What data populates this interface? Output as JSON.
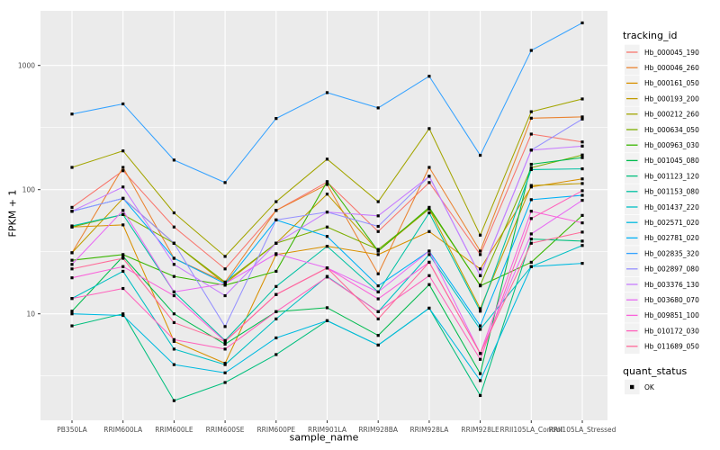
{
  "figure": {
    "background": "#FFFFFF",
    "panel_background": "#EBEBEB",
    "grid_color": "#FFFFFF",
    "axis_text_color": "#4D4D4D",
    "tick_mark_color": "#333333",
    "marker_color": "#000000",
    "legend_key_background": "#F2F2F2"
  },
  "legend": {
    "tracking_title": "tracking_id",
    "quant_title": "quant_status",
    "quant_entries": [
      {
        "label": "OK",
        "symbol": "black-square"
      }
    ]
  },
  "chart_data": {
    "type": "line",
    "title": "",
    "xlabel": "sample_name",
    "ylabel": "FPKM + 1",
    "y_scale": "log10",
    "ylim": [
      1.45,
      2850
    ],
    "y_ticks": [
      10,
      100,
      1000
    ],
    "y_tick_labels": [
      "10",
      "100",
      "1000"
    ],
    "y_minor_ticks": [
      3.162,
      31.62,
      316.23
    ],
    "grid": "white major+minor gridlines on gray panel",
    "legend_position": "right",
    "point_shape": "small filled black square",
    "categories": [
      "PB350LA",
      "RRIM600LA",
      "RRIM600LE",
      "RRIM600SE",
      "RRIM600PE",
      "RRIM901LA",
      "RRIM928BA",
      "RRIM928LA",
      "RRIM928LE",
      "RRII105LA_Control",
      "RRII105LA_Stressed"
    ],
    "series": [
      {
        "name": "Hb_000045_190",
        "color": "#F8766D",
        "values": [
          72,
          142,
          50,
          23,
          68,
          115,
          46,
          114,
          30,
          280,
          242
        ]
      },
      {
        "name": "Hb_000046_260",
        "color": "#EA8331",
        "values": [
          31,
          151,
          28,
          18,
          68,
          110,
          21,
          151,
          32,
          376,
          385
        ]
      },
      {
        "name": "Hb_000161_050",
        "color": "#D89000",
        "values": [
          50,
          52,
          6,
          4,
          30,
          35,
          30,
          46,
          23,
          105,
          122
        ]
      },
      {
        "name": "Hb_000193_200",
        "color": "#C09B00",
        "values": [
          31,
          85,
          37,
          17.5,
          37,
          92,
          32,
          70,
          11,
          108,
          112
        ]
      },
      {
        "name": "Hb_000212_260",
        "color": "#A3A500",
        "values": [
          151,
          205,
          65,
          29,
          80,
          176,
          80,
          310,
          43,
          424,
          537
        ]
      },
      {
        "name": "Hb_000634_050",
        "color": "#7CAE00",
        "values": [
          50,
          63,
          37,
          18,
          37,
          50,
          33,
          70,
          17,
          150,
          190
        ]
      },
      {
        "name": "Hb_000963_030",
        "color": "#39B600",
        "values": [
          27,
          30,
          20,
          17,
          22,
          116,
          32,
          72,
          16.8,
          26,
          62
        ]
      },
      {
        "name": "Hb_001045_080",
        "color": "#00BB4E",
        "values": [
          10.5,
          29,
          10,
          5.7,
          10.4,
          11.2,
          6.7,
          17.2,
          3.3,
          160,
          181
        ]
      },
      {
        "name": "Hb_001123_120",
        "color": "#00BF7D",
        "values": [
          8,
          10,
          2,
          2.8,
          4.7,
          8.8,
          5.6,
          11.1,
          2.2,
          40,
          38.5
        ]
      },
      {
        "name": "Hb_001153_080",
        "color": "#00C1A3",
        "values": [
          51,
          63,
          15,
          6.1,
          16.6,
          35,
          15,
          65,
          10.5,
          145,
          147
        ]
      },
      {
        "name": "Hb_001437_220",
        "color": "#00BFC4",
        "values": [
          13.3,
          22,
          5.2,
          3.9,
          9.1,
          20,
          10.4,
          30,
          7.5,
          24,
          35.5
        ]
      },
      {
        "name": "Hb_002571_020",
        "color": "#00BAE0",
        "values": [
          10,
          9.7,
          3.9,
          3.35,
          6.4,
          8.8,
          5.6,
          11.1,
          2.9,
          24,
          25.5
        ]
      },
      {
        "name": "Hb_002781_020",
        "color": "#00B0F6",
        "values": [
          67,
          85,
          28,
          17.5,
          57,
          42,
          16.8,
          32,
          8,
          83,
          90
        ]
      },
      {
        "name": "Hb_002835_320",
        "color": "#35A2FF",
        "values": [
          406,
          490,
          173,
          114,
          374,
          604,
          455,
          818,
          189,
          1320,
          2200
        ]
      },
      {
        "name": "Hb_002897_080",
        "color": "#9590FF",
        "values": [
          67,
          85,
          37,
          7.9,
          57,
          66,
          50.6,
          128,
          20.3,
          208,
          370
        ]
      },
      {
        "name": "Hb_003376_130",
        "color": "#C77CFF",
        "values": [
          67,
          105,
          25,
          14,
          37,
          66,
          61.5,
          128,
          20.3,
          208,
          224
        ]
      },
      {
        "name": "Hb_003680_070",
        "color": "#E76BF3",
        "values": [
          25,
          68,
          15,
          17.5,
          30.5,
          23.4,
          15,
          32,
          4.8,
          44,
          82
        ]
      },
      {
        "name": "Hb_009851_100",
        "color": "#FA62DB",
        "values": [
          19.5,
          24,
          14,
          6,
          14.3,
          23.4,
          13.2,
          26,
          4.8,
          67,
          54
        ]
      },
      {
        "name": "Hb_010172_030",
        "color": "#FF62BC",
        "values": [
          13.3,
          16,
          6.2,
          5.2,
          10.4,
          19.8,
          10.4,
          20.3,
          4.3,
          58.5,
          98
        ]
      },
      {
        "name": "Hb_011689_050",
        "color": "#FF6A98",
        "values": [
          23,
          28,
          8.5,
          6,
          14.3,
          23.4,
          9.1,
          26,
          4.8,
          37,
          45.5
        ]
      }
    ]
  }
}
